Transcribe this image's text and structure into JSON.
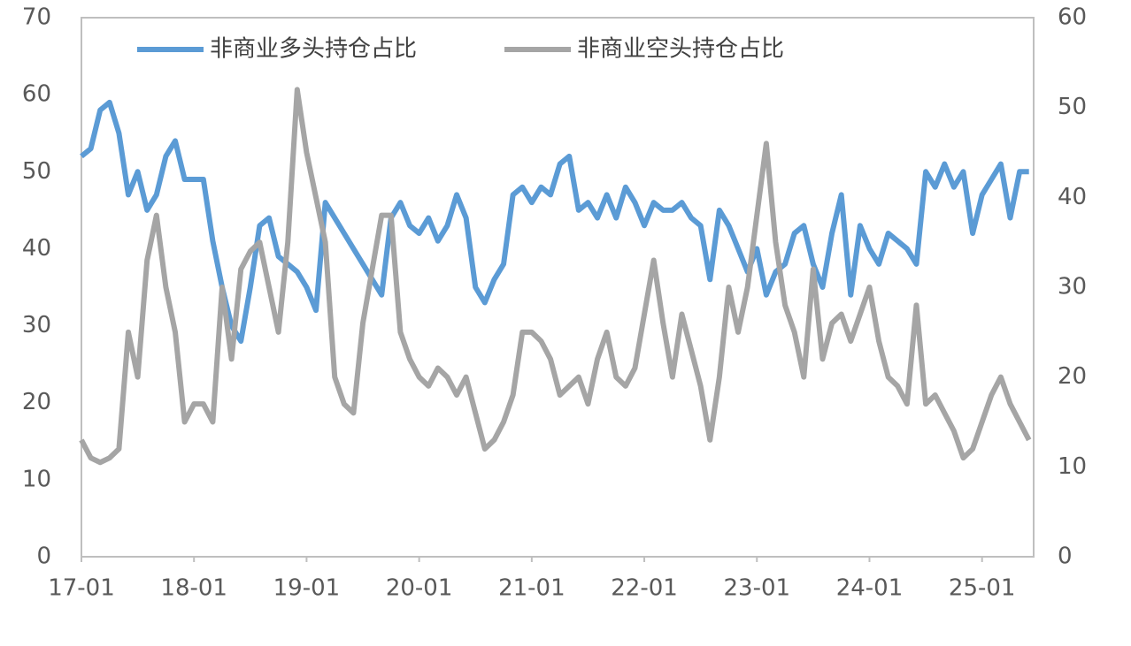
{
  "chart_data": {
    "type": "line",
    "categories": [
      "17-01",
      null,
      null,
      null,
      null,
      null,
      null,
      null,
      null,
      null,
      null,
      null,
      "18-01",
      null,
      null,
      null,
      null,
      null,
      null,
      null,
      null,
      null,
      null,
      null,
      "19-01",
      null,
      null,
      null,
      null,
      null,
      null,
      null,
      null,
      null,
      null,
      null,
      "20-01",
      null,
      null,
      null,
      null,
      null,
      null,
      null,
      null,
      null,
      null,
      null,
      "21-01",
      null,
      null,
      null,
      null,
      null,
      null,
      null,
      null,
      null,
      null,
      null,
      "22-01",
      null,
      null,
      null,
      null,
      null,
      null,
      null,
      null,
      null,
      null,
      null,
      "23-01",
      null,
      null,
      null,
      null,
      null,
      null,
      null,
      null,
      null,
      null,
      null,
      "24-01",
      null,
      null,
      null,
      null,
      null,
      null,
      null,
      null,
      null,
      null,
      null,
      "25-01",
      null,
      null,
      null,
      null,
      null
    ],
    "series": [
      {
        "name": "非商业多头持仓占比",
        "color": "#5b9bd5",
        "values": [
          52,
          53,
          58,
          59,
          55,
          47,
          50,
          45,
          47,
          52,
          54,
          49,
          49,
          49,
          41,
          35,
          30,
          28,
          35,
          43,
          44,
          39,
          38,
          37,
          35,
          32,
          46,
          44,
          42,
          40,
          38,
          36,
          34,
          44,
          46,
          43,
          42,
          44,
          41,
          43,
          47,
          44,
          35,
          33,
          36,
          38,
          47,
          48,
          46,
          48,
          47,
          51,
          52,
          45,
          46,
          44,
          47,
          44,
          48,
          46,
          43,
          46,
          45,
          45,
          46,
          44,
          43,
          36,
          45,
          43,
          40,
          37,
          40,
          34,
          37,
          38,
          42,
          43,
          38,
          35,
          42,
          47,
          34,
          43,
          40,
          38,
          42,
          41,
          40,
          38,
          50,
          48,
          51,
          48,
          50,
          42,
          47,
          49,
          51,
          44,
          50,
          50
        ]
      },
      {
        "name": "非商业空头持仓占比",
        "color": "#a5a5a5",
        "axis": "y2",
        "values": [
          13,
          11,
          10.5,
          11,
          12,
          25,
          20,
          33,
          38,
          30,
          25,
          15,
          17,
          17,
          15,
          30,
          22,
          32,
          34,
          35,
          30,
          25,
          35,
          52,
          45,
          40,
          35,
          20,
          17,
          16,
          26,
          32,
          38,
          38,
          25,
          22,
          20,
          19,
          21,
          20,
          18,
          20,
          16,
          12,
          13,
          15,
          18,
          25,
          25,
          24,
          22,
          18,
          19,
          20,
          17,
          22,
          25,
          20,
          19,
          21,
          27,
          33,
          26,
          20,
          27,
          23,
          19,
          13,
          20,
          30,
          25,
          30,
          38,
          46,
          35,
          28,
          25,
          20,
          32,
          22,
          26,
          27,
          24,
          27,
          30,
          24,
          20,
          19,
          17,
          28,
          17,
          18,
          16,
          14,
          11,
          12,
          15,
          18,
          20,
          17,
          15,
          13
        ]
      }
    ],
    "ylim": [
      0,
      70
    ],
    "yticks": [
      0,
      10,
      20,
      30,
      40,
      50,
      60,
      70
    ],
    "y2lim": [
      0,
      60
    ],
    "y2ticks": [
      0,
      10,
      20,
      30,
      40,
      50,
      60
    ],
    "legend": "top"
  }
}
